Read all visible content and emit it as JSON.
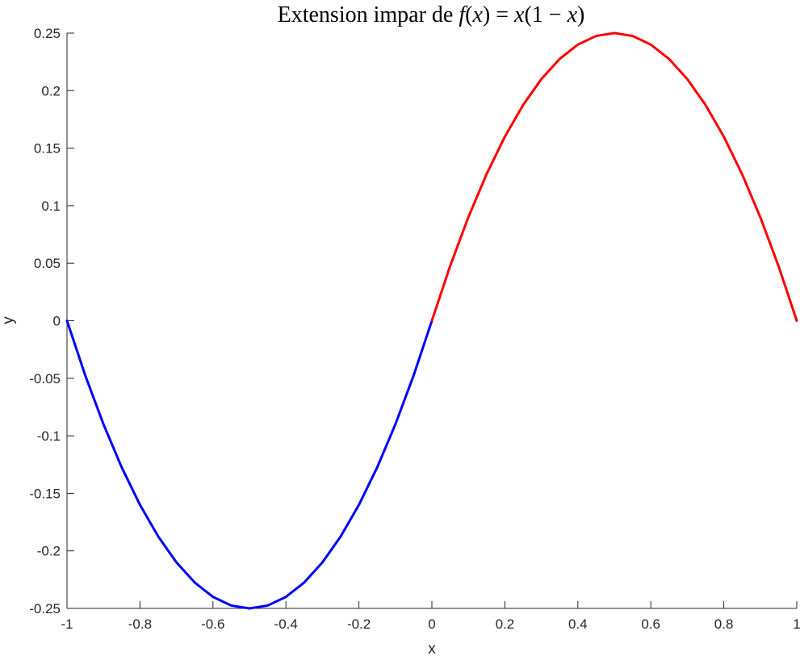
{
  "chart_data": {
    "type": "line",
    "title": {
      "prefix": "Extension impar de ",
      "f": "f",
      "open1": "(",
      "x1": "x",
      "close1": ")",
      "eq": " = ",
      "x2": "x",
      "open2": "(1 − ",
      "x3": "x",
      "close2": ")"
    },
    "xlabel": "x",
    "ylabel": "y",
    "xlim": [
      -1,
      1
    ],
    "ylim": [
      -0.25,
      0.25
    ],
    "grid": false,
    "xticks": [
      -1,
      -0.8,
      -0.6,
      -0.4,
      -0.2,
      0,
      0.2,
      0.4,
      0.6,
      0.8,
      1
    ],
    "xtick_labels": [
      "-1",
      "-0.8",
      "-0.6",
      "-0.4",
      "-0.2",
      "0",
      "0.2",
      "0.4",
      "0.6",
      "0.8",
      "1"
    ],
    "yticks": [
      -0.25,
      -0.2,
      -0.15,
      -0.1,
      -0.05,
      0,
      0.05,
      0.1,
      0.15,
      0.2,
      0.25
    ],
    "ytick_labels": [
      "-0.25",
      "-0.2",
      "-0.15",
      "-0.1",
      "-0.05",
      "0",
      "0.05",
      "0.1",
      "0.15",
      "0.2",
      "0.25"
    ],
    "series": [
      {
        "color": "#0000ff",
        "x": [
          -1,
          -0.95,
          -0.9,
          -0.85,
          -0.8,
          -0.75,
          -0.7,
          -0.65,
          -0.6,
          -0.55,
          -0.5,
          -0.45,
          -0.4,
          -0.35,
          -0.3,
          -0.25,
          -0.2,
          -0.15,
          -0.1,
          -0.05,
          0
        ],
        "y": [
          0,
          -0.0475,
          -0.09,
          -0.1275,
          -0.16,
          -0.1875,
          -0.21,
          -0.2275,
          -0.24,
          -0.2475,
          -0.25,
          -0.2475,
          -0.24,
          -0.2275,
          -0.21,
          -0.1875,
          -0.16,
          -0.1275,
          -0.09,
          -0.0475,
          0
        ]
      },
      {
        "color": "#ff0000",
        "x": [
          0,
          0.05,
          0.1,
          0.15,
          0.2,
          0.25,
          0.3,
          0.35,
          0.4,
          0.45,
          0.5,
          0.55,
          0.6,
          0.65,
          0.7,
          0.75,
          0.8,
          0.85,
          0.9,
          0.95,
          1
        ],
        "y": [
          0,
          0.0475,
          0.09,
          0.1275,
          0.16,
          0.1875,
          0.21,
          0.2275,
          0.24,
          0.2475,
          0.25,
          0.2475,
          0.24,
          0.2275,
          0.21,
          0.1875,
          0.16,
          0.1275,
          0.09,
          0.0475,
          0
        ]
      }
    ]
  }
}
